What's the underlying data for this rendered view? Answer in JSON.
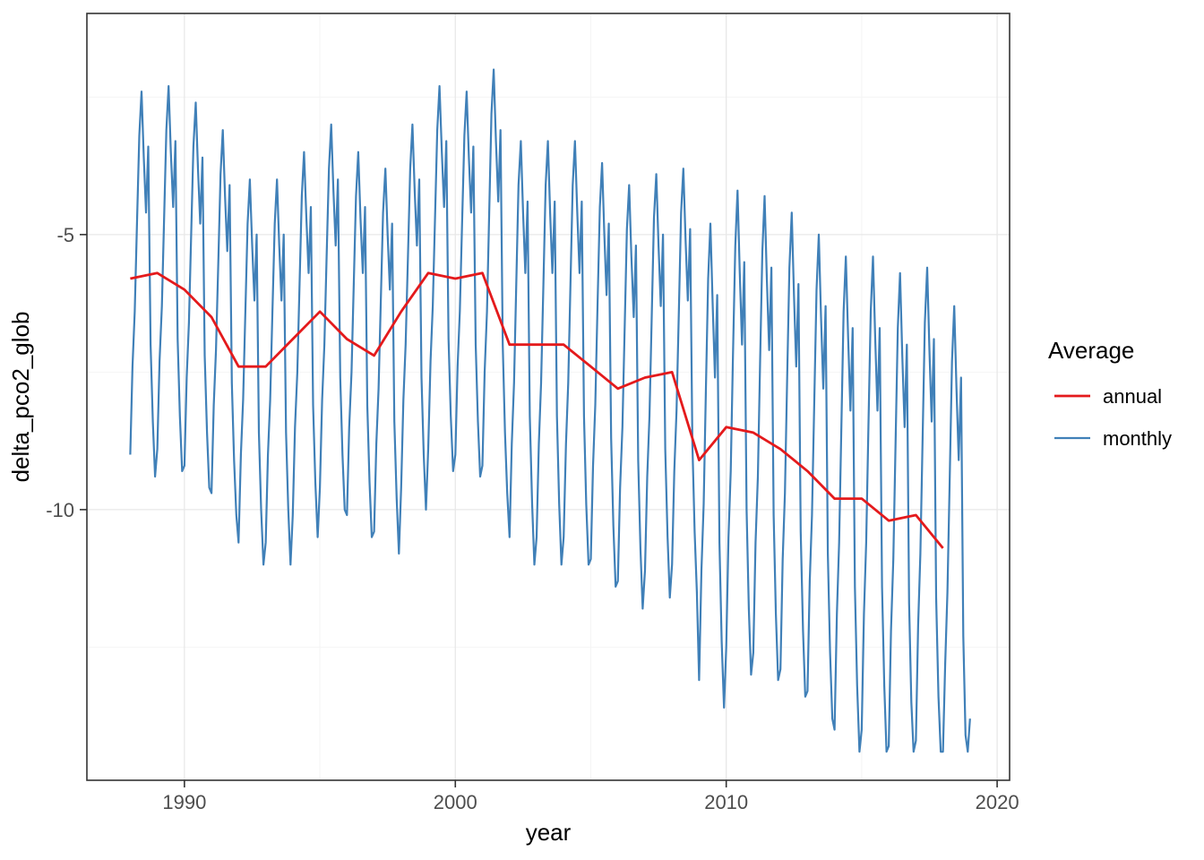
{
  "figure": {
    "background": "#ffffff",
    "panel": {
      "border_color": "#333333",
      "fill": "#ffffff"
    },
    "grid": {
      "major_color": "#e8e8e8",
      "minor_color": "#f4f4f4"
    },
    "tick_color": "#333333",
    "tick_label_color": "#4d4d4d"
  },
  "chart_data": {
    "type": "line",
    "title": "",
    "xlabel": "year",
    "ylabel": "delta_pco2_glob",
    "legend_title": "Average",
    "legend_position": "right",
    "grid": "on",
    "xlim": [
      1986.4,
      2020.46
    ],
    "ylim": [
      -14.92,
      -0.98
    ],
    "x_ticks": [
      1990,
      2000,
      2010,
      2020
    ],
    "y_ticks": [
      -5,
      -10
    ],
    "x_minor_gridlines": [
      1995,
      2005,
      2015
    ],
    "y_minor_gridlines": [
      -2.5,
      -7.5,
      -12.5
    ],
    "series": [
      {
        "name": "annual",
        "color": "#E41A1C",
        "line_width": 2.8,
        "x_start": 1988,
        "x_step": 1,
        "values": [
          -5.8,
          -5.7,
          -6.0,
          -6.5,
          -7.4,
          -7.4,
          -6.9,
          -6.4,
          -6.9,
          -7.2,
          -6.4,
          -5.7,
          -5.8,
          -5.7,
          -7.0,
          -7.0,
          -7.0,
          -7.4,
          -7.8,
          -7.6,
          -7.5,
          -9.1,
          -8.5,
          -8.6,
          -8.9,
          -9.3,
          -9.8,
          -9.8,
          -10.2,
          -10.1,
          -10.7
        ]
      },
      {
        "name": "monthly",
        "color": "#4080B8",
        "line_width": 2.2,
        "x_start": 1988,
        "x_step": 0.0833333,
        "values": [
          -9.0,
          -7.4,
          -6.4,
          -4.8,
          -3.2,
          -2.4,
          -3.6,
          -4.6,
          -3.4,
          -7.0,
          -8.4,
          -9.4,
          -8.9,
          -7.3,
          -6.3,
          -4.7,
          -3.1,
          -2.3,
          -3.5,
          -4.5,
          -3.3,
          -6.9,
          -8.3,
          -9.3,
          -9.2,
          -7.6,
          -6.6,
          -5.0,
          -3.4,
          -2.6,
          -3.8,
          -4.8,
          -3.6,
          -7.2,
          -8.6,
          -9.6,
          -9.7,
          -8.1,
          -7.1,
          -5.5,
          -3.9,
          -3.1,
          -4.3,
          -5.3,
          -4.1,
          -7.7,
          -9.1,
          -10.1,
          -10.6,
          -9.0,
          -8.0,
          -6.4,
          -4.8,
          -4.0,
          -5.2,
          -6.2,
          -5.0,
          -8.6,
          -10.0,
          -11.0,
          -10.6,
          -9.0,
          -8.0,
          -6.4,
          -4.8,
          -4.0,
          -5.2,
          -6.2,
          -5.0,
          -8.6,
          -10.0,
          -11.0,
          -10.1,
          -8.5,
          -7.5,
          -5.9,
          -4.3,
          -3.5,
          -4.7,
          -5.7,
          -4.5,
          -8.1,
          -9.5,
          -10.5,
          -9.6,
          -8.0,
          -7.0,
          -5.4,
          -3.8,
          -3.0,
          -4.2,
          -5.2,
          -4.0,
          -7.6,
          -9.0,
          -10.0,
          -10.1,
          -8.5,
          -7.5,
          -5.9,
          -4.3,
          -3.5,
          -4.7,
          -5.7,
          -4.5,
          -8.1,
          -9.5,
          -10.5,
          -10.4,
          -8.8,
          -7.8,
          -6.2,
          -4.6,
          -3.8,
          -5.0,
          -6.0,
          -4.8,
          -8.4,
          -9.8,
          -10.8,
          -9.6,
          -8.0,
          -7.0,
          -5.4,
          -3.8,
          -3.0,
          -4.2,
          -5.2,
          -4.0,
          -7.6,
          -9.0,
          -10.0,
          -8.9,
          -7.3,
          -6.3,
          -4.7,
          -3.1,
          -2.3,
          -3.5,
          -4.5,
          -3.3,
          -6.9,
          -8.3,
          -9.3,
          -9.0,
          -7.4,
          -6.4,
          -4.8,
          -3.2,
          -2.4,
          -3.6,
          -4.6,
          -3.4,
          -7.0,
          -8.4,
          -9.4,
          -9.2,
          -7.5,
          -6.4,
          -4.6,
          -2.8,
          -2.0,
          -3.3,
          -4.4,
          -3.1,
          -7.0,
          -8.6,
          -9.7,
          -10.5,
          -8.8,
          -7.7,
          -5.9,
          -4.1,
          -3.3,
          -4.6,
          -5.7,
          -4.4,
          -8.3,
          -9.9,
          -11.0,
          -10.5,
          -8.8,
          -7.7,
          -5.9,
          -4.1,
          -3.3,
          -4.6,
          -5.7,
          -4.4,
          -8.3,
          -9.9,
          -11.0,
          -10.5,
          -8.8,
          -7.7,
          -5.9,
          -4.1,
          -3.3,
          -4.6,
          -5.7,
          -4.4,
          -8.3,
          -9.9,
          -11.0,
          -10.9,
          -9.2,
          -8.1,
          -6.3,
          -4.5,
          -3.7,
          -5.0,
          -6.1,
          -4.8,
          -8.7,
          -10.3,
          -11.4,
          -11.3,
          -9.6,
          -8.5,
          -6.7,
          -4.9,
          -4.1,
          -5.4,
          -6.5,
          -5.2,
          -9.1,
          -10.7,
          -11.8,
          -11.1,
          -9.4,
          -8.3,
          -6.5,
          -4.7,
          -3.9,
          -5.2,
          -6.3,
          -5.0,
          -8.9,
          -10.5,
          -11.6,
          -11.0,
          -9.3,
          -8.2,
          -6.4,
          -4.6,
          -3.8,
          -5.1,
          -6.2,
          -4.9,
          -8.8,
          -10.4,
          -11.5,
          -13.1,
          -11.1,
          -9.9,
          -7.8,
          -5.8,
          -4.8,
          -6.3,
          -7.6,
          -6.1,
          -10.6,
          -12.4,
          -13.6,
          -12.5,
          -10.5,
          -9.3,
          -7.2,
          -5.2,
          -4.2,
          -5.7,
          -7.0,
          -5.5,
          -10.0,
          -11.8,
          -13.0,
          -12.6,
          -10.6,
          -9.4,
          -7.3,
          -5.3,
          -4.3,
          -5.8,
          -7.1,
          -5.6,
          -10.1,
          -11.9,
          -13.1,
          -12.9,
          -10.9,
          -9.7,
          -7.6,
          -5.6,
          -4.6,
          -6.1,
          -7.4,
          -5.9,
          -10.4,
          -12.2,
          -13.4,
          -13.3,
          -11.3,
          -10.1,
          -8.0,
          -6.0,
          -5.0,
          -6.5,
          -7.8,
          -6.3,
          -10.8,
          -12.6,
          -13.8,
          -14.0,
          -11.9,
          -10.6,
          -8.5,
          -6.4,
          -5.4,
          -6.9,
          -8.2,
          -6.7,
          -11.4,
          -13.2,
          -14.4,
          -14.0,
          -11.9,
          -10.6,
          -8.5,
          -6.4,
          -5.4,
          -6.9,
          -8.2,
          -6.7,
          -11.4,
          -13.2,
          -14.4,
          -14.3,
          -12.2,
          -10.9,
          -8.8,
          -6.7,
          -5.7,
          -7.2,
          -8.5,
          -7.0,
          -11.7,
          -13.5,
          -14.4,
          -14.2,
          -12.1,
          -10.8,
          -8.7,
          -6.6,
          -5.6,
          -7.1,
          -8.4,
          -6.9,
          -11.6,
          -13.4,
          -14.4,
          -14.4,
          -12.8,
          -11.5,
          -9.4,
          -7.3,
          -6.3,
          -7.8,
          -9.1,
          -7.6,
          -12.3,
          -14.1,
          -14.4,
          -13.8
        ]
      }
    ]
  }
}
